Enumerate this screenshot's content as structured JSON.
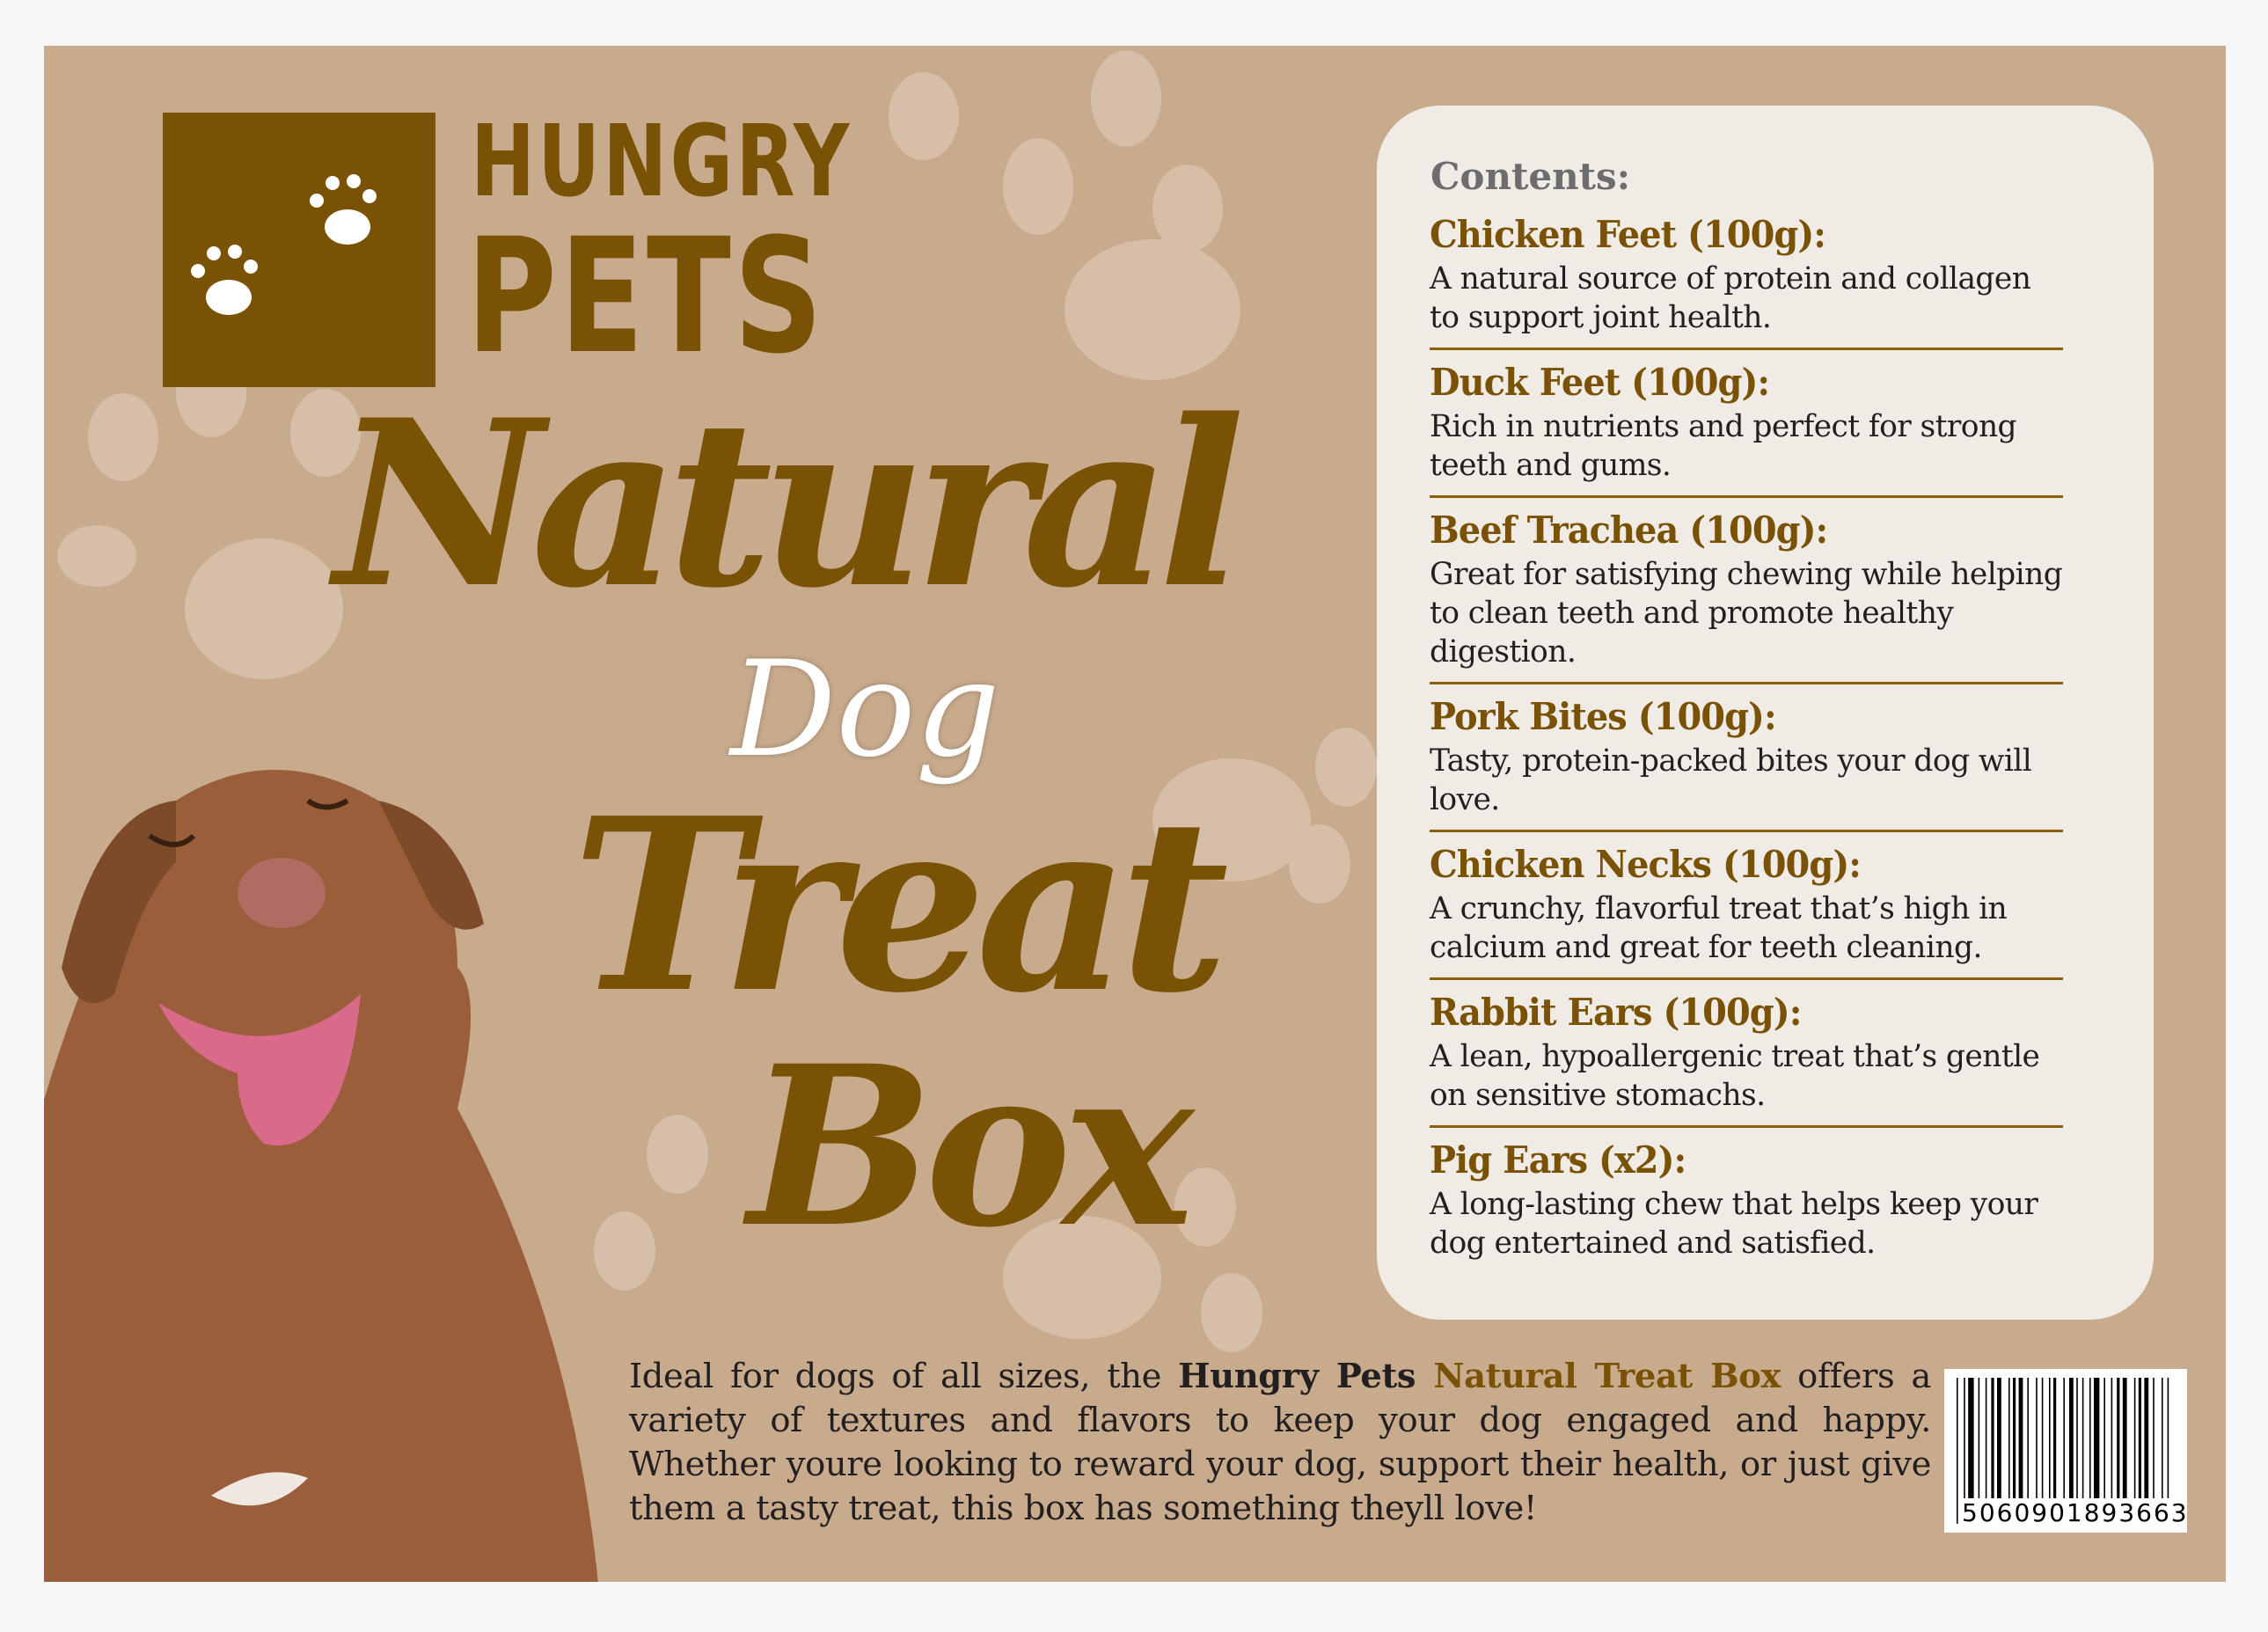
{
  "brand": {
    "line1": "HUNGRY",
    "line2": "PETS"
  },
  "title": {
    "word1": "Natural",
    "word2": "Dog",
    "word3": "Treat",
    "word4": "Box"
  },
  "contents": {
    "heading": "Contents:",
    "items": [
      {
        "name": "Chicken Feet (100g):",
        "description": "A natural source of protein and collagen to support joint health."
      },
      {
        "name": "Duck Feet (100g):",
        "description": "Rich in nutrients and perfect for strong teeth and gums."
      },
      {
        "name": "Beef Trachea (100g):",
        "description": "Great for satisfying chewing while helping to clean teeth and promote healthy digestion."
      },
      {
        "name": "Pork Bites (100g):",
        "description": "Tasty, protein-packed bites your dog will love."
      },
      {
        "name": "Chicken Necks (100g):",
        "description": "A crunchy, flavorful treat that’s high in calcium and great for teeth cleaning."
      },
      {
        "name": "Rabbit Ears (100g):",
        "description": "A lean, hypoallergenic treat that’s gentle on sensitive stomachs."
      },
      {
        "name": "Pig Ears (x2):",
        "description": "A long-lasting chew that helps keep your dog entertained and satisfied."
      }
    ]
  },
  "blurb": {
    "prefix": "Ideal for dogs of all sizes, the ",
    "brand": "Hungry Pets",
    "product": " Natural Treat Box",
    "suffix": " offers a variety of textures and flavors to keep your dog engaged and happy. Whether youre looking to reward your dog, support their health, or just give them a tasty treat, this box has something theyll love!"
  },
  "barcode": {
    "number": "5060901893663"
  },
  "colors": {
    "background": "#c8aa8c",
    "accent": "#7a5205",
    "panel": "#f0ebe4"
  },
  "icons": [
    "paw-print-icon",
    "barcode-icon"
  ]
}
